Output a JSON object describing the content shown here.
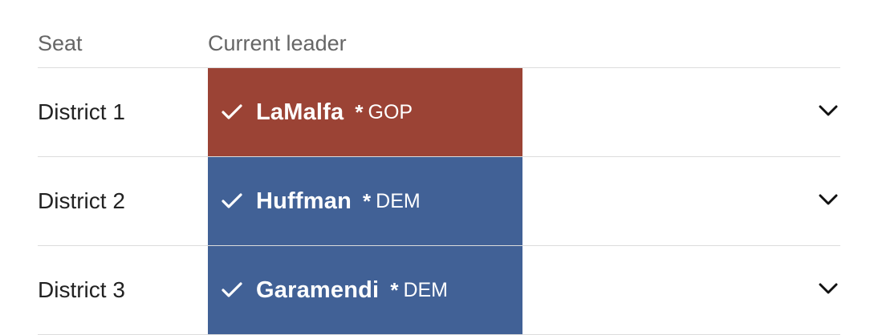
{
  "header": {
    "seat_label": "Seat",
    "leader_label": "Current leader"
  },
  "rows": [
    {
      "seat": "District 1",
      "leader": "LaMalfa",
      "incumbent": "*",
      "party": "GOP",
      "color": "#9b4335"
    },
    {
      "seat": "District 2",
      "leader": "Huffman",
      "incumbent": "*",
      "party": "DEM",
      "color": "#416196"
    },
    {
      "seat": "District 3",
      "leader": "Garamendi",
      "incumbent": "*",
      "party": "DEM",
      "color": "#416196"
    }
  ],
  "icons": {
    "winner": "check-icon",
    "expand": "chevron-down-icon"
  }
}
